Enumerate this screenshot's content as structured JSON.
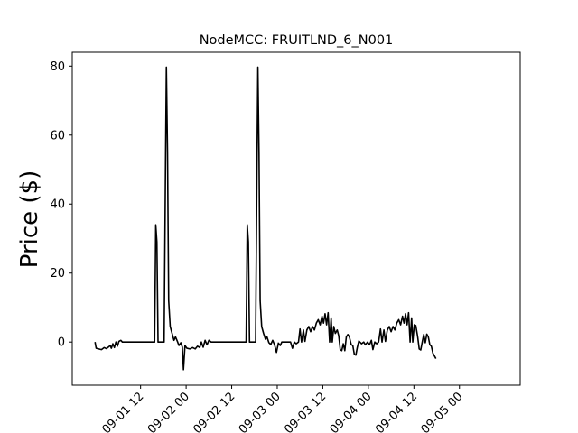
{
  "chart_data": {
    "type": "line",
    "title": "NodeMCC: FRUITLND_6_N001",
    "xlabel": "",
    "ylabel": "Price ($)",
    "x_unit": "hours",
    "x_start": "2022-09-01 00",
    "xlim": [
      -6,
      112
    ],
    "ylim": [
      -12.5,
      84
    ],
    "grid": false,
    "legend": "none",
    "line_color": "#000000",
    "x_ticks": [
      {
        "t": 12,
        "label": "09-01 12"
      },
      {
        "t": 24,
        "label": "09-02 00"
      },
      {
        "t": 36,
        "label": "09-02 12"
      },
      {
        "t": 48,
        "label": "09-03 00"
      },
      {
        "t": 60,
        "label": "09-03 12"
      },
      {
        "t": 72,
        "label": "09-04 00"
      },
      {
        "t": 84,
        "label": "09-04 12"
      },
      {
        "t": 96,
        "label": "09-05 00"
      }
    ],
    "y_ticks": [
      {
        "v": 0,
        "label": "0"
      },
      {
        "v": 20,
        "label": "20"
      },
      {
        "v": 40,
        "label": "40"
      },
      {
        "v": 60,
        "label": "60"
      },
      {
        "v": 80,
        "label": "80"
      }
    ],
    "series": [
      {
        "values": [
          [
            0.0,
            0.0
          ],
          [
            0.3,
            -1.8
          ],
          [
            1.0,
            -2.0
          ],
          [
            1.7,
            -2.2
          ],
          [
            2.4,
            -1.6
          ],
          [
            3.0,
            -1.9
          ],
          [
            3.5,
            -1.5
          ],
          [
            4.0,
            -1.0
          ],
          [
            4.3,
            -1.8
          ],
          [
            4.7,
            -0.5
          ],
          [
            5.1,
            -1.6
          ],
          [
            5.5,
            0.0
          ],
          [
            5.9,
            -1.2
          ],
          [
            6.3,
            0.2
          ],
          [
            6.8,
            0.5
          ],
          [
            7.2,
            0.0
          ],
          [
            15.7,
            0.0
          ],
          [
            16.0,
            34.0
          ],
          [
            16.3,
            29.0
          ],
          [
            16.6,
            0.0
          ],
          [
            18.2,
            0.0
          ],
          [
            18.6,
            55.0
          ],
          [
            18.8,
            79.7
          ],
          [
            19.1,
            55.0
          ],
          [
            19.4,
            12.0
          ],
          [
            19.8,
            4.5
          ],
          [
            20.3,
            2.5
          ],
          [
            20.8,
            0.5
          ],
          [
            21.2,
            1.5
          ],
          [
            21.7,
            0.2
          ],
          [
            22.1,
            -1.0
          ],
          [
            22.6,
            -0.2
          ],
          [
            23.0,
            -1.5
          ],
          [
            23.3,
            -8.0
          ],
          [
            23.7,
            -1.0
          ],
          [
            24.2,
            -1.8
          ],
          [
            25.0,
            -2.0
          ],
          [
            25.7,
            -1.6
          ],
          [
            26.4,
            -2.0
          ],
          [
            27.0,
            -1.2
          ],
          [
            27.6,
            -1.6
          ],
          [
            28.0,
            0.0
          ],
          [
            28.5,
            -1.5
          ],
          [
            29.0,
            0.5
          ],
          [
            29.5,
            -0.8
          ],
          [
            30.0,
            0.5
          ],
          [
            30.6,
            0.0
          ],
          [
            39.8,
            0.0
          ],
          [
            40.1,
            34.0
          ],
          [
            40.4,
            29.0
          ],
          [
            40.7,
            0.0
          ],
          [
            42.3,
            0.0
          ],
          [
            42.7,
            55.0
          ],
          [
            42.9,
            79.7
          ],
          [
            43.2,
            55.0
          ],
          [
            43.5,
            12.0
          ],
          [
            43.9,
            4.5
          ],
          [
            44.4,
            2.5
          ],
          [
            44.9,
            0.8
          ],
          [
            45.3,
            1.5
          ],
          [
            45.8,
            -0.2
          ],
          [
            46.3,
            -0.7
          ],
          [
            46.8,
            0.5
          ],
          [
            47.3,
            -0.8
          ],
          [
            47.8,
            -3.0
          ],
          [
            48.3,
            -0.3
          ],
          [
            48.8,
            -1.0
          ],
          [
            49.2,
            0.0
          ],
          [
            51.5,
            0.0
          ],
          [
            52.0,
            -1.8
          ],
          [
            52.5,
            0.0
          ],
          [
            53.0,
            -0.5
          ],
          [
            53.6,
            0.0
          ],
          [
            54.0,
            3.8
          ],
          [
            54.4,
            0.0
          ],
          [
            54.9,
            3.5
          ],
          [
            55.3,
            0.2
          ],
          [
            55.8,
            3.5
          ],
          [
            56.3,
            4.5
          ],
          [
            56.8,
            3.0
          ],
          [
            57.3,
            4.5
          ],
          [
            57.8,
            3.5
          ],
          [
            58.3,
            5.5
          ],
          [
            58.8,
            6.5
          ],
          [
            59.3,
            5.0
          ],
          [
            59.8,
            7.5
          ],
          [
            60.2,
            5.5
          ],
          [
            60.6,
            8.2
          ],
          [
            61.0,
            5.0
          ],
          [
            61.4,
            8.5
          ],
          [
            61.8,
            0.0
          ],
          [
            62.2,
            7.0
          ],
          [
            62.5,
            0.0
          ],
          [
            62.9,
            4.5
          ],
          [
            63.3,
            2.5
          ],
          [
            63.8,
            3.5
          ],
          [
            64.2,
            1.8
          ],
          [
            64.6,
            -2.2
          ],
          [
            65.0,
            -2.5
          ],
          [
            65.4,
            -0.5
          ],
          [
            65.8,
            -2.5
          ],
          [
            66.2,
            1.5
          ],
          [
            66.6,
            2.2
          ],
          [
            67.0,
            1.5
          ],
          [
            67.5,
            -0.8
          ],
          [
            67.9,
            -1.0
          ],
          [
            68.3,
            -3.5
          ],
          [
            68.7,
            -3.8
          ],
          [
            69.1,
            -1.5
          ],
          [
            69.5,
            0.3
          ],
          [
            70.2,
            -0.5
          ],
          [
            70.8,
            0.0
          ],
          [
            71.2,
            -0.8
          ],
          [
            71.8,
            0.0
          ],
          [
            72.3,
            -0.8
          ],
          [
            72.8,
            0.5
          ],
          [
            73.2,
            -2.2
          ],
          [
            73.7,
            0.0
          ],
          [
            74.2,
            -0.5
          ],
          [
            74.7,
            0.0
          ],
          [
            75.2,
            3.8
          ],
          [
            75.6,
            0.0
          ],
          [
            76.1,
            3.5
          ],
          [
            76.5,
            0.2
          ],
          [
            77.0,
            3.5
          ],
          [
            77.5,
            4.5
          ],
          [
            78.0,
            3.0
          ],
          [
            78.5,
            4.5
          ],
          [
            79.0,
            3.5
          ],
          [
            79.5,
            5.5
          ],
          [
            80.0,
            6.5
          ],
          [
            80.5,
            5.0
          ],
          [
            81.0,
            7.5
          ],
          [
            81.4,
            5.5
          ],
          [
            81.8,
            8.2
          ],
          [
            82.2,
            5.0
          ],
          [
            82.6,
            8.5
          ],
          [
            83.0,
            0.0
          ],
          [
            83.4,
            7.0
          ],
          [
            83.7,
            0.0
          ],
          [
            84.1,
            5.0
          ],
          [
            84.5,
            4.8
          ],
          [
            85.0,
            1.5
          ],
          [
            85.4,
            -2.0
          ],
          [
            85.8,
            -2.3
          ],
          [
            86.2,
            0.0
          ],
          [
            86.6,
            2.2
          ],
          [
            87.0,
            -0.2
          ],
          [
            87.4,
            2.3
          ],
          [
            87.8,
            1.5
          ],
          [
            88.2,
            -0.8
          ],
          [
            88.6,
            -1.2
          ],
          [
            89.0,
            -3.2
          ],
          [
            89.4,
            -4.0
          ],
          [
            89.8,
            -4.8
          ]
        ]
      }
    ]
  }
}
